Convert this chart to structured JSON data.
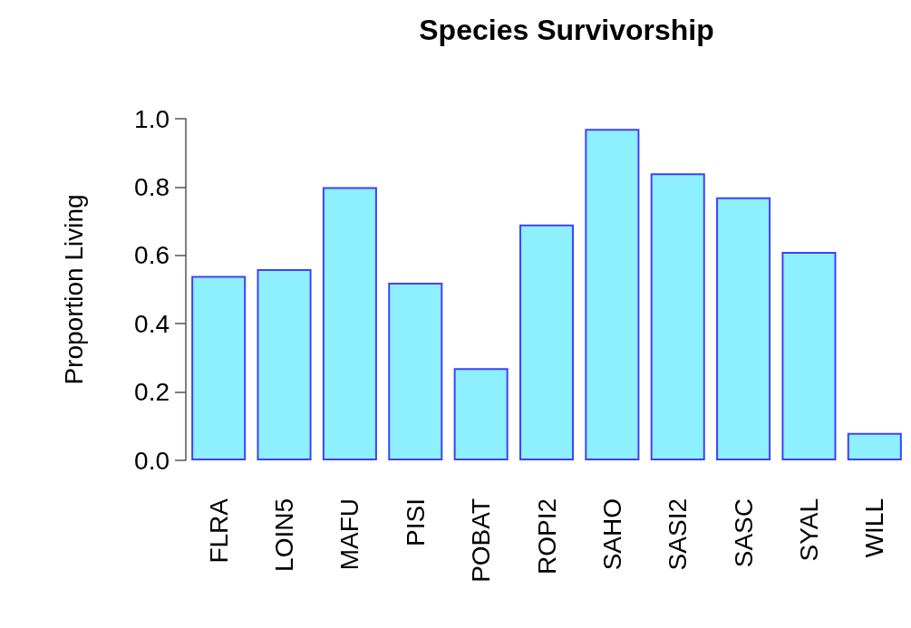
{
  "chart_data": {
    "type": "bar",
    "title": "Species Survivorship",
    "ylabel": "Proportion Living",
    "categories": [
      "FLRA",
      "LOIN5",
      "MAFU",
      "PISI",
      "POBAT",
      "ROPI2",
      "SAHO",
      "SASI2",
      "SASC",
      "SYAL",
      "WILL"
    ],
    "values": [
      0.54,
      0.56,
      0.8,
      0.52,
      0.27,
      0.69,
      0.97,
      0.84,
      0.77,
      0.61,
      0.08
    ],
    "color": "#8ef0ff",
    "ylim": [
      0,
      1
    ],
    "yticks": [
      {
        "value": 0,
        "label": "0.0"
      },
      0.2,
      0.4,
      0.6,
      0.8,
      {
        "value": 1,
        "label": "1.0"
      }
    ],
    "grid": false
  }
}
